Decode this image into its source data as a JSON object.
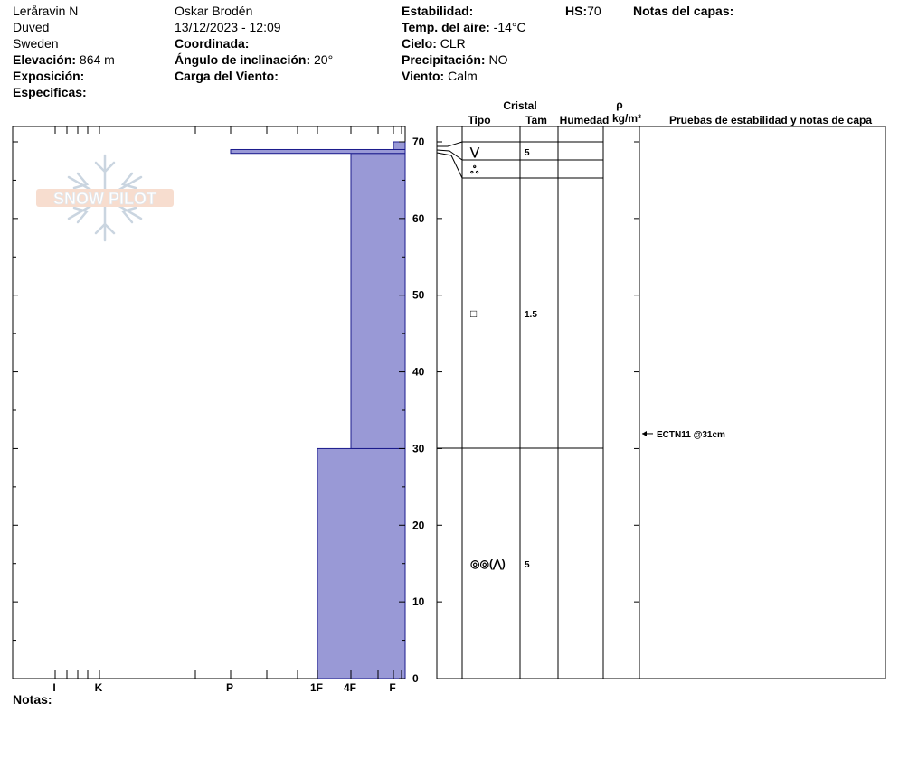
{
  "header": {
    "location": "Leråravin N",
    "region": "Duved",
    "country": "Sweden",
    "elevation_label": "Elevación:",
    "elevation_value": "864 m",
    "aspect_label": "Exposición:",
    "specifics_label": "Especificas:",
    "observer": "Oskar Brodén",
    "datetime": "13/12/2023 - 12:09",
    "coord_label": "Coordinada:",
    "slope_label": "Ángulo de inclinación:",
    "slope_value": "20°",
    "wind_load_label": "Carga del Viento:",
    "stability_label": "Estabilidad:",
    "air_temp_label": "Temp. del aire:",
    "air_temp_value": "-14°C",
    "sky_label": "Cielo:",
    "sky_value": "CLR",
    "precip_label": "Precipitación:",
    "precip_value": "NO",
    "wind_label": "Viento:",
    "wind_value": "Calm",
    "hs_label": "HS:",
    "hs_value": "70",
    "layer_notes_label": "Notas del capas:"
  },
  "footer": {
    "notes_label": "Notas:"
  },
  "logo_text": "SNOW PILOT",
  "colors": {
    "hardness_fill": "#9999d6",
    "hardness_stroke": "#1a1a8c"
  },
  "chart_data": {
    "type": "area",
    "hardness_axis_ticks": [
      "I",
      "K",
      "P",
      "1F",
      "4F",
      "F"
    ],
    "depth_ticks": [
      "0",
      "10",
      "20",
      "30",
      "40",
      "50",
      "60",
      "70"
    ],
    "ylim": [
      0,
      70
    ],
    "hardness_layers": [
      {
        "bottom": 0,
        "top": 30,
        "hardness": "1F"
      },
      {
        "bottom": 30,
        "top": 68.5,
        "hardness": "4F"
      },
      {
        "bottom": 68.5,
        "top": 69,
        "hardness": "P"
      },
      {
        "bottom": 69,
        "top": 70,
        "hardness": "F"
      }
    ],
    "table_headers": {
      "crystal": "Cristal",
      "type": "Tipo",
      "size": "Tam",
      "moisture": "Humedad",
      "density_symbol": "ρ",
      "density_unit": "kg/m³",
      "tests": "Pruebas de estabilidad y notas de capa"
    },
    "layer_boundaries": [
      70,
      67.5,
      65.2,
      30,
      0
    ],
    "crystal_rows": [
      {
        "depth": 69,
        "type_symbol": "⋁",
        "size": "5"
      },
      {
        "depth": 66.5,
        "type_symbol": "ஃ",
        "size": ""
      },
      {
        "depth": 47.5,
        "type_symbol": "□",
        "size": "1.5"
      },
      {
        "depth": 15,
        "type_symbol": "◎◎(⋀)",
        "size": "5"
      }
    ],
    "stability_tests": [
      {
        "depth": 31,
        "label": "ECTN11 @31cm"
      }
    ]
  }
}
